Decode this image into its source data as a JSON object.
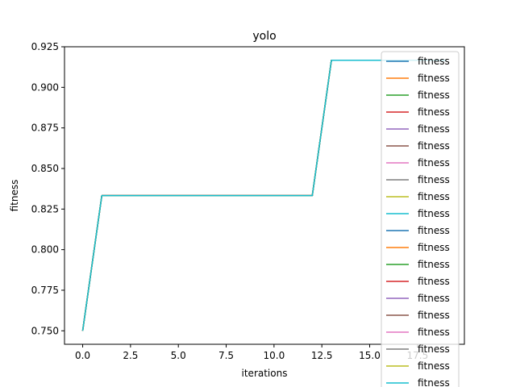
{
  "chart_data": {
    "type": "line",
    "title": "yolo",
    "xlabel": "iterations",
    "ylabel": "fitness",
    "xlim": [
      -0.95,
      19.95
    ],
    "ylim": [
      0.7417,
      0.925
    ],
    "x_ticks": [
      0.0,
      2.5,
      5.0,
      7.5,
      10.0,
      12.5,
      15.0,
      17.5
    ],
    "x_tick_labels": [
      "0.0",
      "2.5",
      "5.0",
      "7.5",
      "10.0",
      "12.5",
      "15.0",
      "17.5"
    ],
    "y_ticks": [
      0.75,
      0.775,
      0.8,
      0.825,
      0.85,
      0.875,
      0.9,
      0.925
    ],
    "y_tick_labels": [
      "0.750",
      "0.775",
      "0.800",
      "0.825",
      "0.850",
      "0.875",
      "0.900",
      "0.925"
    ],
    "grid": false,
    "legend_placement": "top-right",
    "x": [
      0,
      1,
      2,
      3,
      4,
      5,
      6,
      7,
      8,
      9,
      10,
      11,
      12,
      13,
      14,
      15,
      16,
      17,
      18,
      19
    ],
    "series": [
      {
        "name": "fitness",
        "color": "#1f77b4",
        "values": [
          0.75,
          0.8333,
          0.8333,
          0.8333,
          0.8333,
          0.8333,
          0.8333,
          0.8333,
          0.8333,
          0.8333,
          0.8333,
          0.8333,
          0.8333,
          0.9167,
          0.9167,
          0.9167,
          0.9167,
          0.9167,
          0.9167,
          0.9167
        ]
      },
      {
        "name": "fitness",
        "color": "#ff7f0e",
        "values": [
          0.75,
          0.8333,
          0.8333,
          0.8333,
          0.8333,
          0.8333,
          0.8333,
          0.8333,
          0.8333,
          0.8333,
          0.8333,
          0.8333,
          0.8333,
          0.9167,
          0.9167,
          0.9167,
          0.9167,
          0.9167,
          0.9167,
          0.9167
        ]
      },
      {
        "name": "fitness",
        "color": "#2ca02c",
        "values": [
          0.75,
          0.8333,
          0.8333,
          0.8333,
          0.8333,
          0.8333,
          0.8333,
          0.8333,
          0.8333,
          0.8333,
          0.8333,
          0.8333,
          0.8333,
          0.9167,
          0.9167,
          0.9167,
          0.9167,
          0.9167,
          0.9167,
          0.9167
        ]
      },
      {
        "name": "fitness",
        "color": "#d62728",
        "values": [
          0.75,
          0.8333,
          0.8333,
          0.8333,
          0.8333,
          0.8333,
          0.8333,
          0.8333,
          0.8333,
          0.8333,
          0.8333,
          0.8333,
          0.8333,
          0.9167,
          0.9167,
          0.9167,
          0.9167,
          0.9167,
          0.9167,
          0.9167
        ]
      },
      {
        "name": "fitness",
        "color": "#9467bd",
        "values": [
          0.75,
          0.8333,
          0.8333,
          0.8333,
          0.8333,
          0.8333,
          0.8333,
          0.8333,
          0.8333,
          0.8333,
          0.8333,
          0.8333,
          0.8333,
          0.9167,
          0.9167,
          0.9167,
          0.9167,
          0.9167,
          0.9167,
          0.9167
        ]
      },
      {
        "name": "fitness",
        "color": "#8c564b",
        "values": [
          0.75,
          0.8333,
          0.8333,
          0.8333,
          0.8333,
          0.8333,
          0.8333,
          0.8333,
          0.8333,
          0.8333,
          0.8333,
          0.8333,
          0.8333,
          0.9167,
          0.9167,
          0.9167,
          0.9167,
          0.9167,
          0.9167,
          0.9167
        ]
      },
      {
        "name": "fitness",
        "color": "#e377c2",
        "values": [
          0.75,
          0.8333,
          0.8333,
          0.8333,
          0.8333,
          0.8333,
          0.8333,
          0.8333,
          0.8333,
          0.8333,
          0.8333,
          0.8333,
          0.8333,
          0.9167,
          0.9167,
          0.9167,
          0.9167,
          0.9167,
          0.9167,
          0.9167
        ]
      },
      {
        "name": "fitness",
        "color": "#7f7f7f",
        "values": [
          0.75,
          0.8333,
          0.8333,
          0.8333,
          0.8333,
          0.8333,
          0.8333,
          0.8333,
          0.8333,
          0.8333,
          0.8333,
          0.8333,
          0.8333,
          0.9167,
          0.9167,
          0.9167,
          0.9167,
          0.9167,
          0.9167,
          0.9167
        ]
      },
      {
        "name": "fitness",
        "color": "#bcbd22",
        "values": [
          0.75,
          0.8333,
          0.8333,
          0.8333,
          0.8333,
          0.8333,
          0.8333,
          0.8333,
          0.8333,
          0.8333,
          0.8333,
          0.8333,
          0.8333,
          0.9167,
          0.9167,
          0.9167,
          0.9167,
          0.9167,
          0.9167,
          0.9167
        ]
      },
      {
        "name": "fitness",
        "color": "#17becf",
        "values": [
          0.75,
          0.8333,
          0.8333,
          0.8333,
          0.8333,
          0.8333,
          0.8333,
          0.8333,
          0.8333,
          0.8333,
          0.8333,
          0.8333,
          0.8333,
          0.9167,
          0.9167,
          0.9167,
          0.9167,
          0.9167,
          0.9167,
          0.9167
        ]
      },
      {
        "name": "fitness",
        "color": "#1f77b4",
        "values": [
          0.75,
          0.8333,
          0.8333,
          0.8333,
          0.8333,
          0.8333,
          0.8333,
          0.8333,
          0.8333,
          0.8333,
          0.8333,
          0.8333,
          0.8333,
          0.9167,
          0.9167,
          0.9167,
          0.9167,
          0.9167,
          0.9167,
          0.9167
        ]
      },
      {
        "name": "fitness",
        "color": "#ff7f0e",
        "values": [
          0.75,
          0.8333,
          0.8333,
          0.8333,
          0.8333,
          0.8333,
          0.8333,
          0.8333,
          0.8333,
          0.8333,
          0.8333,
          0.8333,
          0.8333,
          0.9167,
          0.9167,
          0.9167,
          0.9167,
          0.9167,
          0.9167,
          0.9167
        ]
      },
      {
        "name": "fitness",
        "color": "#2ca02c",
        "values": [
          0.75,
          0.8333,
          0.8333,
          0.8333,
          0.8333,
          0.8333,
          0.8333,
          0.8333,
          0.8333,
          0.8333,
          0.8333,
          0.8333,
          0.8333,
          0.9167,
          0.9167,
          0.9167,
          0.9167,
          0.9167,
          0.9167,
          0.9167
        ]
      },
      {
        "name": "fitness",
        "color": "#d62728",
        "values": [
          0.75,
          0.8333,
          0.8333,
          0.8333,
          0.8333,
          0.8333,
          0.8333,
          0.8333,
          0.8333,
          0.8333,
          0.8333,
          0.8333,
          0.8333,
          0.9167,
          0.9167,
          0.9167,
          0.9167,
          0.9167,
          0.9167,
          0.9167
        ]
      },
      {
        "name": "fitness",
        "color": "#9467bd",
        "values": [
          0.75,
          0.8333,
          0.8333,
          0.8333,
          0.8333,
          0.8333,
          0.8333,
          0.8333,
          0.8333,
          0.8333,
          0.8333,
          0.8333,
          0.8333,
          0.9167,
          0.9167,
          0.9167,
          0.9167,
          0.9167,
          0.9167,
          0.9167
        ]
      },
      {
        "name": "fitness",
        "color": "#8c564b",
        "values": [
          0.75,
          0.8333,
          0.8333,
          0.8333,
          0.8333,
          0.8333,
          0.8333,
          0.8333,
          0.8333,
          0.8333,
          0.8333,
          0.8333,
          0.8333,
          0.9167,
          0.9167,
          0.9167,
          0.9167,
          0.9167,
          0.9167,
          0.9167
        ]
      },
      {
        "name": "fitness",
        "color": "#e377c2",
        "values": [
          0.75,
          0.8333,
          0.8333,
          0.8333,
          0.8333,
          0.8333,
          0.8333,
          0.8333,
          0.8333,
          0.8333,
          0.8333,
          0.8333,
          0.8333,
          0.9167,
          0.9167,
          0.9167,
          0.9167,
          0.9167,
          0.9167,
          0.9167
        ]
      },
      {
        "name": "fitness",
        "color": "#7f7f7f",
        "values": [
          0.75,
          0.8333,
          0.8333,
          0.8333,
          0.8333,
          0.8333,
          0.8333,
          0.8333,
          0.8333,
          0.8333,
          0.8333,
          0.8333,
          0.8333,
          0.9167,
          0.9167,
          0.9167,
          0.9167,
          0.9167,
          0.9167,
          0.9167
        ]
      },
      {
        "name": "fitness",
        "color": "#bcbd22",
        "values": [
          0.75,
          0.8333,
          0.8333,
          0.8333,
          0.8333,
          0.8333,
          0.8333,
          0.8333,
          0.8333,
          0.8333,
          0.8333,
          0.8333,
          0.8333,
          0.9167,
          0.9167,
          0.9167,
          0.9167,
          0.9167,
          0.9167,
          0.9167
        ]
      },
      {
        "name": "fitness",
        "color": "#17becf",
        "values": [
          0.75,
          0.8333,
          0.8333,
          0.8333,
          0.8333,
          0.8333,
          0.8333,
          0.8333,
          0.8333,
          0.8333,
          0.8333,
          0.8333,
          0.8333,
          0.9167,
          0.9167,
          0.9167,
          0.9167,
          0.9167,
          0.9167,
          0.9167
        ]
      }
    ]
  }
}
